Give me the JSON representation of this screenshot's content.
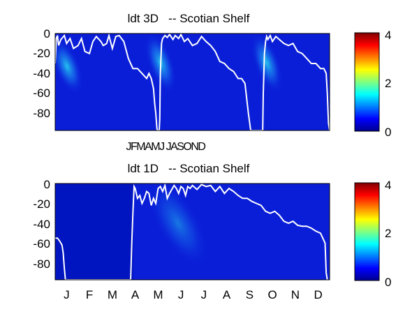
{
  "chart_data": [
    {
      "type": "heatmap",
      "title": "ldt 3D   -- Scotian Shelf",
      "xlabel": "",
      "ylabel": "",
      "ylim": [
        -97,
        0
      ],
      "y_ticks": [
        "0",
        "-20",
        "-40",
        "-60",
        "-80"
      ],
      "y_tick_values": [
        0,
        -20,
        -40,
        -60,
        -80
      ],
      "x_tick_text": "JFMAMJ JASOND",
      "colorbar": {
        "ticks": [
          "0",
          "2",
          "4"
        ],
        "tick_values": [
          0,
          2,
          4
        ],
        "range": [
          0,
          4
        ],
        "colormap": "jet"
      },
      "years_shown": 3,
      "white_line_depth_3yr": {
        "x_month": [
          0.0,
          0.1,
          0.2,
          0.3,
          0.5,
          0.8,
          1.0,
          1.3,
          1.6,
          2.0,
          2.3,
          2.6,
          3.0,
          3.3,
          3.6,
          4.0,
          4.2,
          4.5,
          4.7,
          5.0,
          5.3,
          5.6,
          6.0,
          6.4,
          6.8,
          7.2,
          7.6,
          8.0,
          8.2,
          8.4,
          8.6,
          8.7,
          8.8,
          8.9,
          8.95,
          9.0,
          9.05,
          9.1,
          9.15,
          9.2,
          9.3,
          9.4,
          9.6,
          9.8,
          10.0,
          10.3,
          10.5,
          10.8,
          11.0,
          11.3,
          11.6,
          12.0,
          12.4,
          12.8,
          13.2,
          13.6,
          14.0,
          14.4,
          14.8,
          15.2,
          15.6,
          16.0,
          16.3,
          16.6,
          16.9,
          17.1,
          17.3,
          17.5,
          17.7,
          17.85,
          17.95,
          18.0,
          18.05,
          18.1,
          18.15,
          18.2,
          18.3,
          18.4,
          18.5,
          18.6,
          18.8,
          19.0,
          19.3,
          19.6,
          20.0,
          20.4,
          20.8,
          21.2,
          21.6,
          22.0,
          22.4,
          22.8,
          23.2,
          23.5,
          23.7,
          23.8,
          23.9,
          24.0
        ],
        "depth": [
          -30,
          -5,
          -2,
          -12,
          -6,
          -2,
          -10,
          -5,
          -15,
          -12,
          -5,
          -18,
          -20,
          -8,
          -3,
          -8,
          -12,
          -10,
          -2,
          -15,
          -3,
          -2,
          -8,
          -25,
          -35,
          -35,
          -40,
          -45,
          -40,
          -45,
          -55,
          -70,
          -80,
          -95,
          -97,
          -97,
          -97,
          -97,
          -85,
          -40,
          -10,
          -5,
          -2,
          -4,
          -1,
          -6,
          -2,
          -5,
          -1,
          -8,
          -5,
          -12,
          -10,
          -3,
          -8,
          -12,
          -18,
          -28,
          -30,
          -35,
          -38,
          -45,
          -45,
          -50,
          -80,
          -97,
          -97,
          -97,
          -97,
          -97,
          -97,
          -97,
          -97,
          -97,
          -97,
          -60,
          -20,
          -8,
          -3,
          -6,
          -2,
          -8,
          -3,
          -6,
          -10,
          -12,
          -10,
          -18,
          -20,
          -25,
          -30,
          -30,
          -35,
          -35,
          -40,
          -60,
          -90,
          -97
        ]
      }
    },
    {
      "type": "heatmap",
      "title": "ldt 1D   -- Scotian Shelf",
      "xlabel": "",
      "ylabel": "",
      "ylim": [
        -97,
        0
      ],
      "y_ticks": [
        "0",
        "-20",
        "-40",
        "-60",
        "-80"
      ],
      "y_tick_values": [
        0,
        -20,
        -40,
        -60,
        -80
      ],
      "x_ticks": [
        "J",
        "F",
        "M",
        "A",
        "M",
        "J",
        "J",
        "A",
        "S",
        "O",
        "N",
        "D"
      ],
      "colorbar": {
        "ticks": [
          "0",
          "2",
          "4"
        ],
        "tick_values": [
          0,
          2,
          4
        ],
        "range": [
          0,
          4
        ],
        "colormap": "jet"
      },
      "white_line_depth": {
        "x_month": [
          0.0,
          0.1,
          0.2,
          0.3,
          0.35,
          0.4,
          0.45,
          3.3,
          3.35,
          3.4,
          3.45,
          3.5,
          3.6,
          3.7,
          3.8,
          3.9,
          4.0,
          4.1,
          4.2,
          4.3,
          4.4,
          4.5,
          4.6,
          4.7,
          4.8,
          4.9,
          5.0,
          5.1,
          5.2,
          5.3,
          5.4,
          5.5,
          5.6,
          5.7,
          5.8,
          5.9,
          6.0,
          6.2,
          6.4,
          6.6,
          6.8,
          7.0,
          7.2,
          7.4,
          7.6,
          7.8,
          8.0,
          8.2,
          8.4,
          8.6,
          8.8,
          9.0,
          9.2,
          9.4,
          9.6,
          9.8,
          10.0,
          10.2,
          10.4,
          10.6,
          10.8,
          11.0,
          11.2,
          11.4,
          11.6,
          11.7,
          11.8,
          11.85,
          11.9
        ],
        "depth": [
          -55,
          -55,
          -58,
          -62,
          -70,
          -85,
          -97,
          -97,
          -60,
          -30,
          -3,
          -5,
          -15,
          -12,
          -20,
          -15,
          -8,
          -10,
          -22,
          -15,
          -20,
          -5,
          -3,
          -8,
          -2,
          -15,
          -10,
          -6,
          -2,
          -5,
          -10,
          -3,
          -5,
          -12,
          -3,
          -5,
          -2,
          -6,
          -1,
          -3,
          -2,
          -8,
          -3,
          -10,
          -5,
          -8,
          -12,
          -15,
          -15,
          -18,
          -20,
          -22,
          -28,
          -30,
          -28,
          -32,
          -38,
          -40,
          -38,
          -42,
          -43,
          -43,
          -45,
          -48,
          -50,
          -55,
          -60,
          -90,
          -97
        ]
      }
    }
  ],
  "colors": {
    "background": "#ffffff",
    "line": "#ffffff",
    "heatmap_base": "#0a1ed8",
    "heatmap_low": "#0010b8"
  }
}
